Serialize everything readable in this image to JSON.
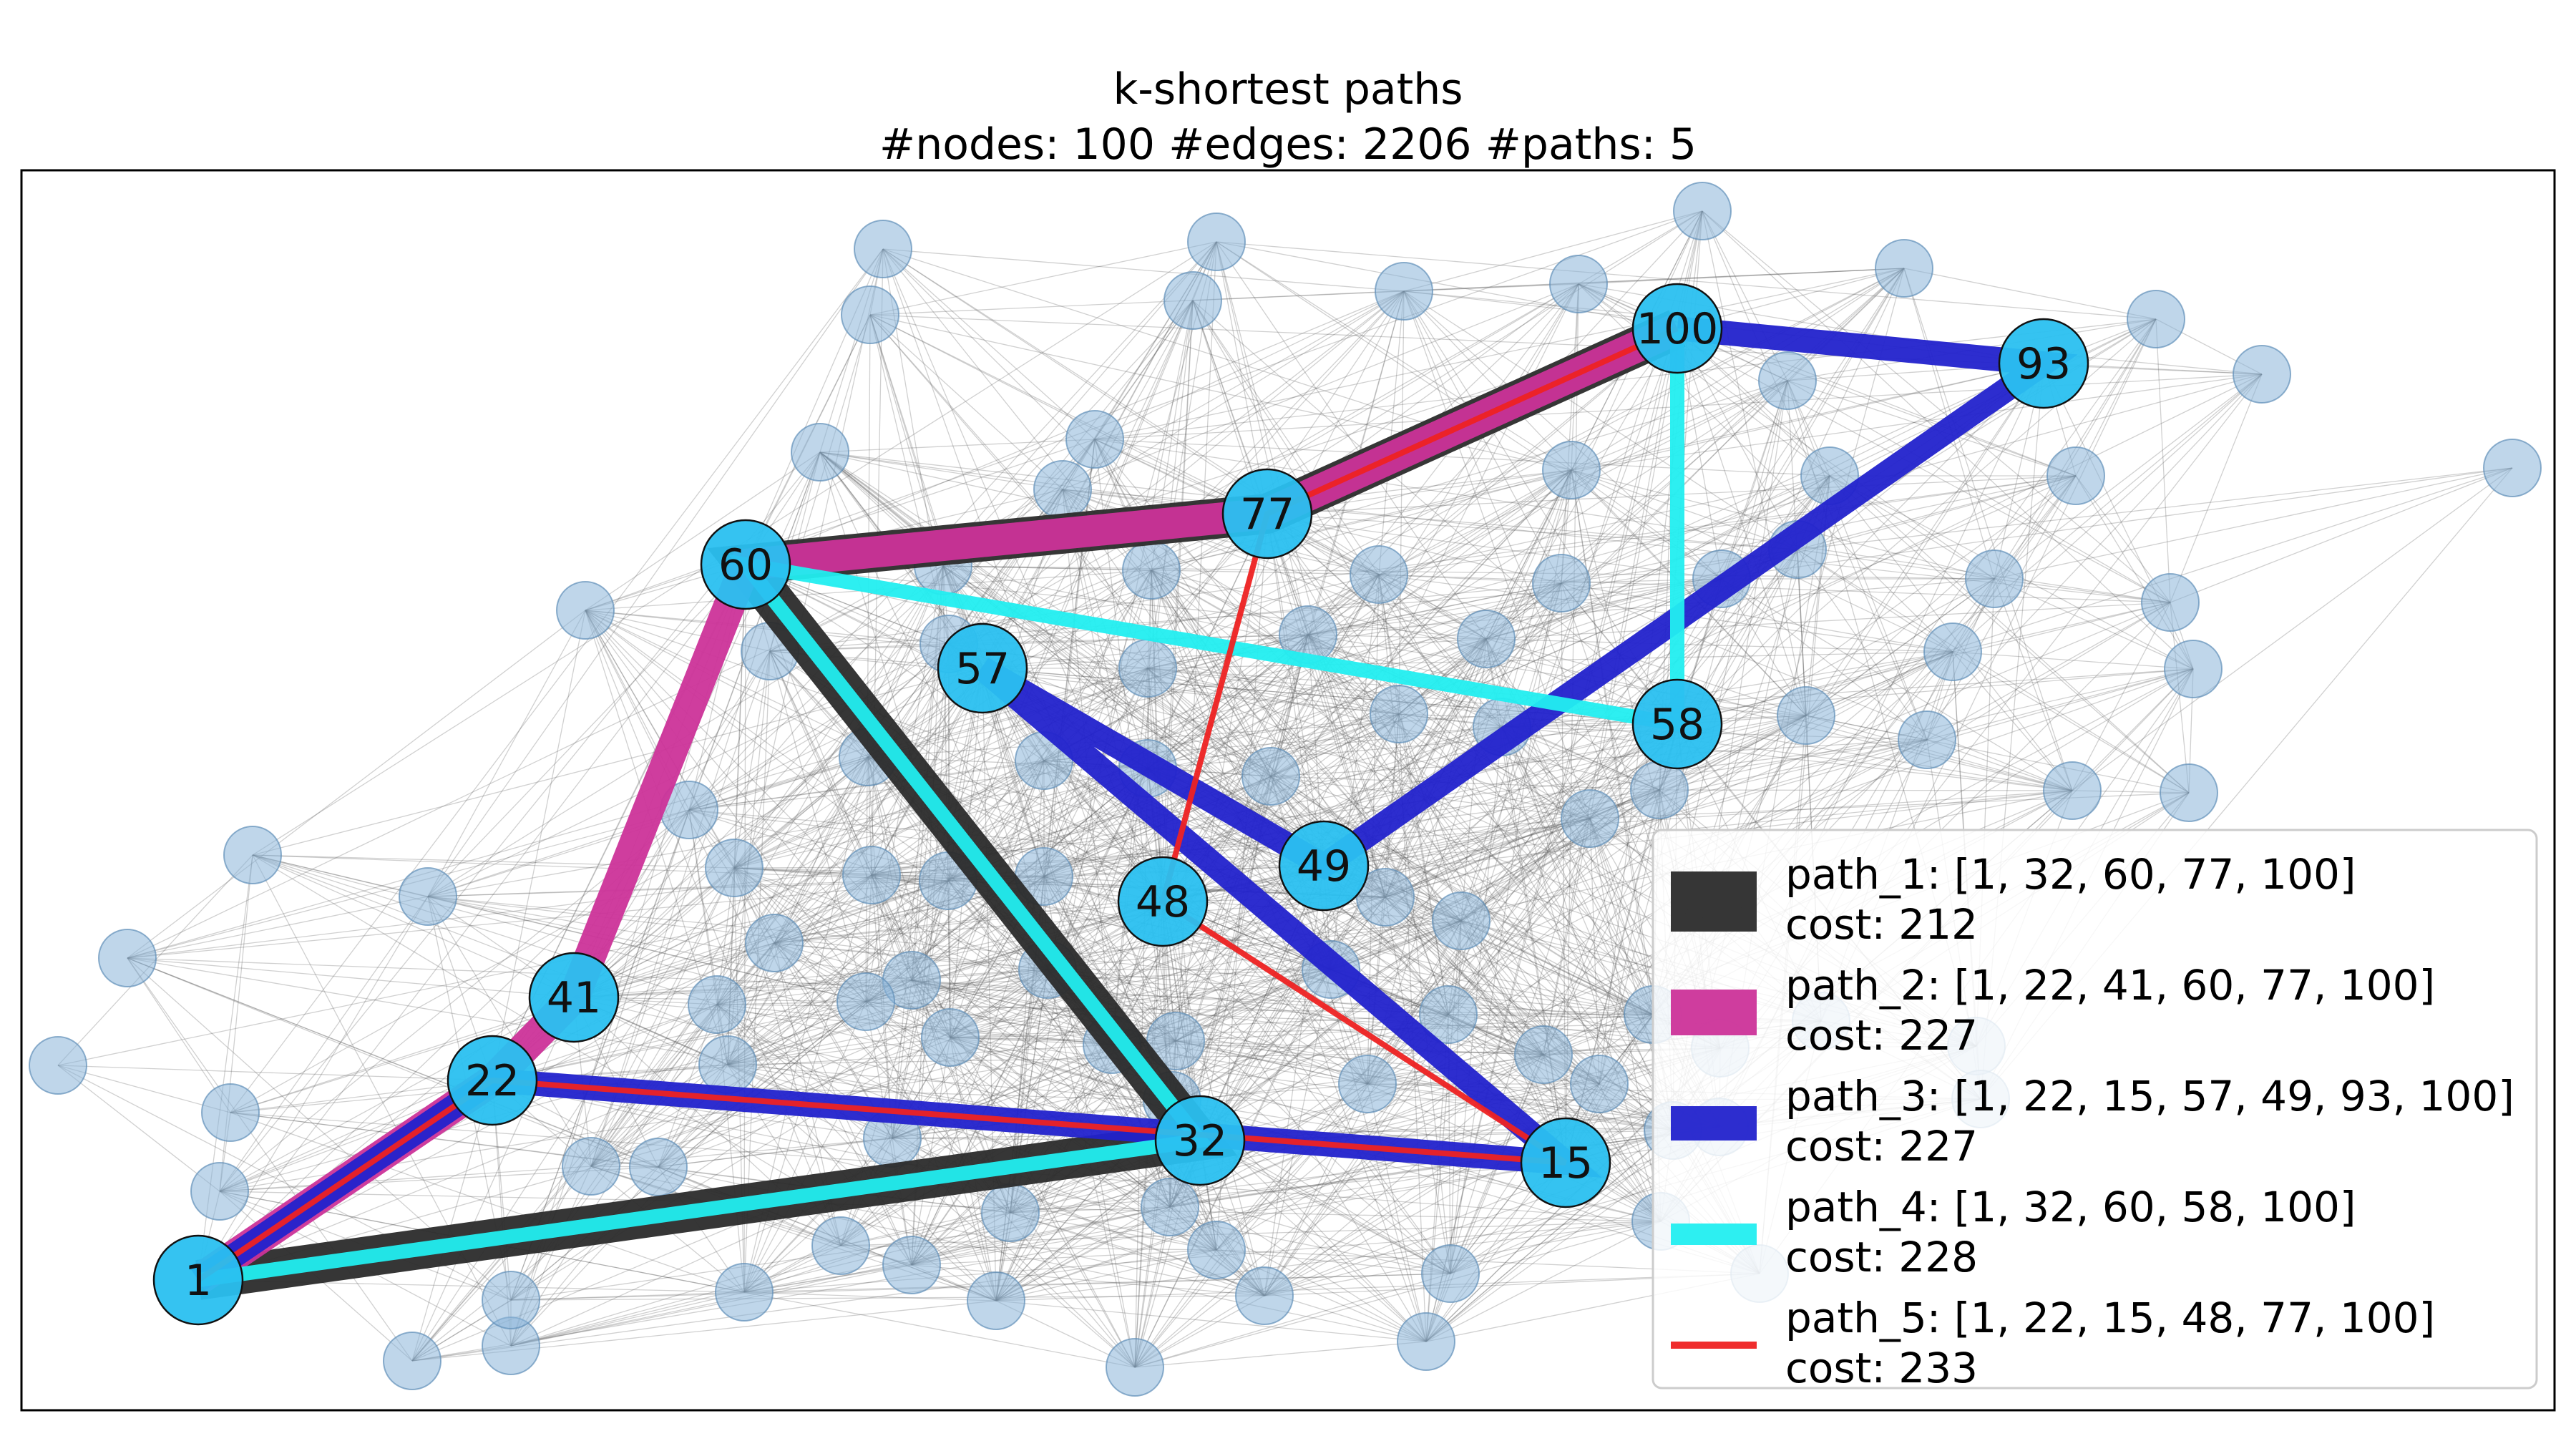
{
  "title": {
    "line1": "k-shortest paths",
    "line2": "#nodes: 100   #edges: 2206   #paths: 5"
  },
  "colors": {
    "background_node": "#8ab4d8",
    "path_node": "#2ac0f0",
    "edge": "#555555"
  },
  "paths": [
    {
      "id": "path_1",
      "nodes": [
        1,
        32,
        60,
        77,
        100
      ],
      "cost": 212,
      "color": "#2b2b2b",
      "label": "path_1: [1, 32, 60, 77, 100]",
      "cost_label": "cost: 212"
    },
    {
      "id": "path_2",
      "nodes": [
        1,
        22,
        41,
        60,
        77,
        100
      ],
      "cost": 227,
      "color": "#cc3399",
      "label": "path_2: [1, 22, 41, 60, 77, 100]",
      "cost_label": "cost: 227"
    },
    {
      "id": "path_3",
      "nodes": [
        1,
        22,
        15,
        57,
        49,
        93,
        100
      ],
      "cost": 227,
      "color": "#2222cc",
      "label": "path_3: [1, 22, 15, 57, 49, 93, 100]",
      "cost_label": "cost: 227"
    },
    {
      "id": "path_4",
      "nodes": [
        1,
        32,
        60,
        58,
        100
      ],
      "cost": 228,
      "color": "#22eef0",
      "label": "path_4: [1, 32, 60, 58, 100]",
      "cost_label": "cost: 228"
    },
    {
      "id": "path_5",
      "nodes": [
        1,
        22,
        15,
        48,
        77,
        100
      ],
      "cost": 233,
      "color": "#ee2222",
      "label": "path_5: [1, 22, 15, 48, 77, 100]",
      "cost_label": "cost: 233"
    }
  ],
  "path_node_labels": [
    "1",
    "15",
    "22",
    "32",
    "41",
    "48",
    "49",
    "57",
    "58",
    "60",
    "77",
    "93",
    "100"
  ]
}
